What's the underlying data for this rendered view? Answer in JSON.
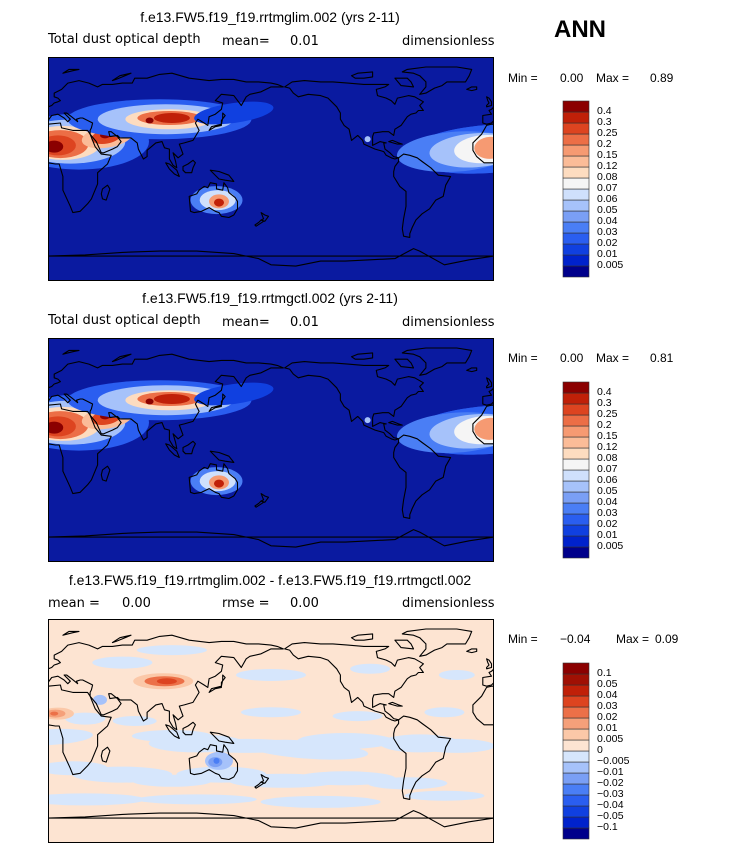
{
  "figure": {
    "season": "ANN"
  },
  "chart_data": [
    {
      "type": "heatmap",
      "title": "f.e13.FW5.f19_f19.rrtmglim.002 (yrs 2-11)",
      "variable": "Total dust optical depth",
      "mean_label": "mean=",
      "mean": "0.01",
      "units": "dimensionless",
      "min_label": "Min =",
      "min": "0.00",
      "max_label": "Max =",
      "max": "0.89",
      "colorbar_levels": [
        "0.005",
        "0.01",
        "0.02",
        "0.03",
        "0.04",
        "0.05",
        "0.06",
        "0.07",
        "0.08",
        "0.12",
        "0.15",
        "0.2",
        "0.25",
        "0.3",
        "0.4"
      ],
      "colorbar_colors": [
        "#00008b",
        "#0022cc",
        "#1040e0",
        "#2a5ef0",
        "#4a7ef5",
        "#7a9ff5",
        "#a6c2fa",
        "#cfe0fc",
        "#f5f5f5",
        "#fddcc0",
        "#fbbc98",
        "#f69a72",
        "#ec6e46",
        "#dd4420",
        "#c02008",
        "#8b0000"
      ],
      "map_background": "#0a1aa0",
      "dust_sources": [
        {
          "region": "Sahara",
          "lon": 10,
          "lat": 22,
          "value": 0.4
        },
        {
          "region": "Arabia",
          "lon": 45,
          "lat": 25,
          "value": 0.3
        },
        {
          "region": "Taklamakan-Gobi",
          "lon": 95,
          "lat": 40,
          "value": 0.4
        },
        {
          "region": "Central Australia",
          "lon": 135,
          "lat": -26,
          "value": 0.25
        }
      ]
    },
    {
      "type": "heatmap",
      "title": "f.e13.FW5.f19_f19.rrtmgctl.002 (yrs 2-11)",
      "variable": "Total dust optical depth",
      "mean_label": "mean=",
      "mean": "0.01",
      "units": "dimensionless",
      "min_label": "Min =",
      "min": "0.00",
      "max_label": "Max =",
      "max": "0.81",
      "colorbar_levels": [
        "0.005",
        "0.01",
        "0.02",
        "0.03",
        "0.04",
        "0.05",
        "0.06",
        "0.07",
        "0.08",
        "0.12",
        "0.15",
        "0.2",
        "0.25",
        "0.3",
        "0.4"
      ],
      "colorbar_colors": [
        "#00008b",
        "#0022cc",
        "#1040e0",
        "#2a5ef0",
        "#4a7ef5",
        "#7a9ff5",
        "#a6c2fa",
        "#cfe0fc",
        "#f5f5f5",
        "#fddcc0",
        "#fbbc98",
        "#f69a72",
        "#ec6e46",
        "#dd4420",
        "#c02008",
        "#8b0000"
      ],
      "map_background": "#0a1aa0",
      "dust_sources": [
        {
          "region": "Sahara",
          "lon": 10,
          "lat": 22,
          "value": 0.4
        },
        {
          "region": "Arabia",
          "lon": 45,
          "lat": 25,
          "value": 0.3
        },
        {
          "region": "Taklamakan-Gobi",
          "lon": 95,
          "lat": 40,
          "value": 0.4
        },
        {
          "region": "Central Australia",
          "lon": 135,
          "lat": -26,
          "value": 0.25
        }
      ]
    },
    {
      "type": "heatmap",
      "title": "f.e13.FW5.f19_f19.rrtmglim.002 - f.e13.FW5.f19_f19.rrtmgctl.002",
      "mean_label": "mean =",
      "mean": "0.00",
      "rmse_label": "rmse =",
      "rmse": "0.00",
      "units": "dimensionless",
      "min_label": "Min =",
      "min": "−0.04",
      "max_label": "Max =",
      "max": "0.09",
      "colorbar_levels": [
        "−0.1",
        "−0.05",
        "−0.04",
        "−0.03",
        "−0.02",
        "−0.01",
        "−0.005",
        "0",
        "0.005",
        "0.01",
        "0.02",
        "0.03",
        "0.04",
        "0.05",
        "0.1"
      ],
      "colorbar_colors": [
        "#00008b",
        "#0022cc",
        "#1040e0",
        "#2a5ef0",
        "#4a7ef5",
        "#7a9ff5",
        "#a6c2fa",
        "#d6e6fc",
        "#fde4d2",
        "#fbc8a8",
        "#f5a07a",
        "#ec7048",
        "#dd4420",
        "#c02008",
        "#a01004",
        "#8b0000"
      ],
      "map_background": "#fde4d2",
      "anomalies": [
        {
          "region": "Taklamakan-Gobi",
          "lon": 95,
          "lat": 40,
          "value": 0.05
        },
        {
          "region": "West Africa",
          "lon": 5,
          "lat": 15,
          "value": 0.02
        },
        {
          "region": "Central Australia",
          "lon": 135,
          "lat": -25,
          "value": -0.02
        }
      ]
    }
  ]
}
